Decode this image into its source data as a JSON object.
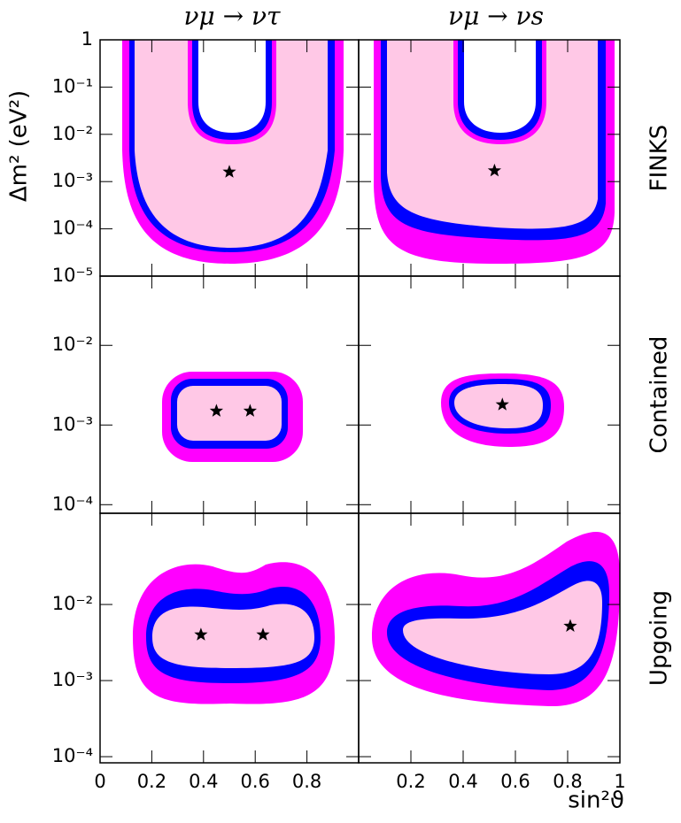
{
  "chart_data": {
    "type": "contour",
    "column_titles": [
      "νμ → ντ",
      "νμ → νs"
    ],
    "ylabel": "Δm² (eV²)",
    "xlabel": "sin²ϑ",
    "xlim": [
      0,
      1
    ],
    "xticks": [
      [
        0,
        0.2,
        0.4,
        0.6,
        0.8
      ],
      [
        0.2,
        0.4,
        0.6,
        0.8,
        1
      ]
    ],
    "log_y": true,
    "colors": {
      "outer": "#ff00ff",
      "middle": "#0000ff",
      "inner": "#ffc8e6",
      "marker": "#000000"
    },
    "rows": [
      {
        "label": "FINKS",
        "ylim": [
          1e-05,
          1
        ],
        "yticks": [
          {
            "value": 1e-05,
            "label": "10⁻⁵"
          },
          {
            "value": 0.0001,
            "label": "10⁻⁴"
          },
          {
            "value": 0.001,
            "label": "10⁻³"
          },
          {
            "value": 0.01,
            "label": "10⁻²"
          },
          {
            "value": 0.1,
            "label": "10⁻¹"
          },
          1
        ],
        "best_fit": [
          [
            {
              "x": 0.5,
              "y": 0.0016
            }
          ],
          [
            {
              "x": 0.52,
              "y": 0.0017
            }
          ]
        ]
      },
      {
        "label": "Contained",
        "ylim": [
          7.8e-05,
          0.074
        ],
        "yticks": [
          {
            "value": 0.0001,
            "label": "10⁻⁴"
          },
          {
            "value": 0.001,
            "label": "10⁻³"
          },
          {
            "value": 0.01,
            "label": "10⁻²"
          }
        ],
        "best_fit": [
          [
            {
              "x": 0.45,
              "y": 0.0015
            },
            {
              "x": 0.58,
              "y": 0.0015
            }
          ],
          [
            {
              "x": 0.55,
              "y": 0.0018
            }
          ]
        ]
      },
      {
        "label": "Upgoing",
        "ylim": [
          8.3e-05,
          0.158
        ],
        "yticks": [
          {
            "value": 0.0001,
            "label": "10⁻⁴"
          },
          {
            "value": 0.001,
            "label": "10⁻³"
          },
          {
            "value": 0.01,
            "label": "10⁻²"
          }
        ],
        "best_fit": [
          [
            {
              "x": 0.39,
              "y": 0.004
            },
            {
              "x": 0.63,
              "y": 0.004
            }
          ],
          [
            {
              "x": 0.81,
              "y": 0.0052
            }
          ]
        ]
      }
    ]
  }
}
